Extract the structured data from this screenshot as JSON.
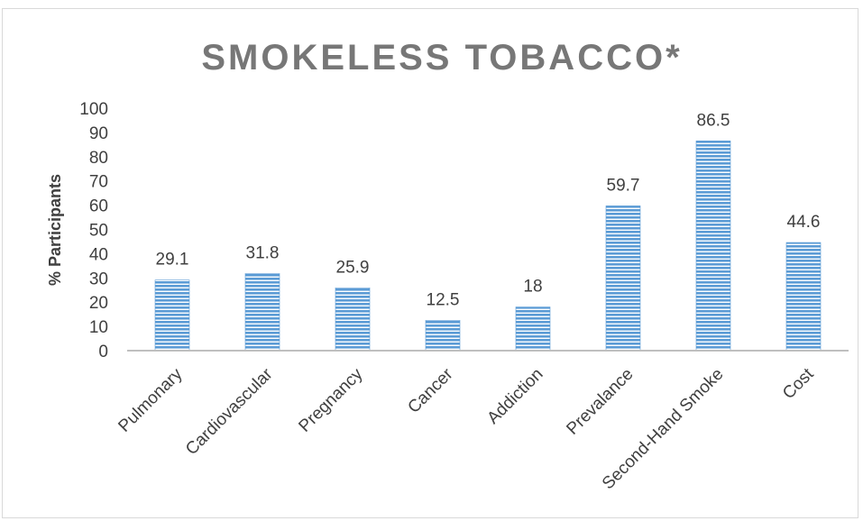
{
  "chart_data": {
    "type": "bar",
    "title": "SMOKELESS TOBACCO*",
    "xlabel": "",
    "ylabel": "% Participants",
    "categories": [
      "Pulmonary",
      "Cardiovascular",
      "Pregnancy",
      "Cancer",
      "Addiction",
      "Prevalance",
      "Second-Hand Smoke",
      "Cost"
    ],
    "values": [
      29.1,
      31.8,
      25.9,
      12.5,
      18,
      59.7,
      86.5,
      44.6
    ],
    "data_labels": [
      "29.1",
      "31.8",
      "25.9",
      "12.5",
      "18",
      "59.7",
      "86.5",
      "44.6"
    ],
    "ylim": [
      0,
      100
    ],
    "yticks": [
      0,
      10,
      20,
      30,
      40,
      50,
      60,
      70,
      80,
      90,
      100
    ],
    "grid": false,
    "legend": "none",
    "colors": {
      "bar_fill": "#5b9bd5",
      "bar_stripe": "#ffffff",
      "axis_line": "#bfbfbf",
      "title": "#777777",
      "text": "#404040"
    }
  }
}
